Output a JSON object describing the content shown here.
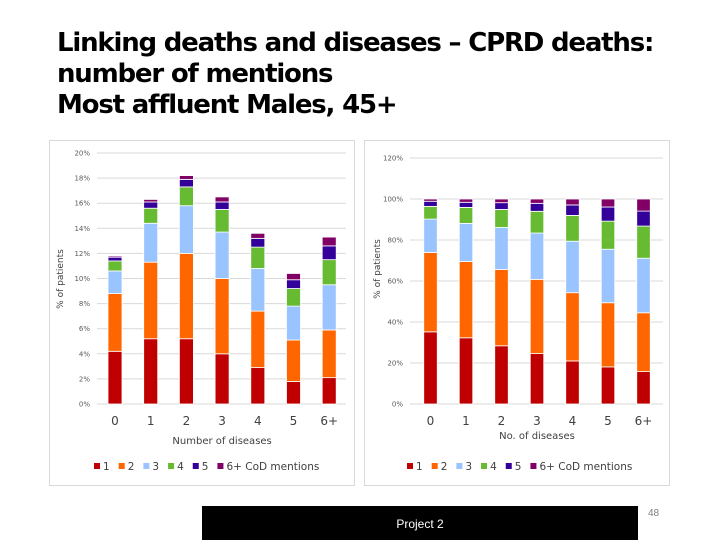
{
  "title_lines": [
    "Linking deaths and diseases – CPRD deaths:",
    "number of mentions",
    "Most affluent Males, 45+"
  ],
  "footer": {
    "label": "Project 2",
    "page_number": "48"
  },
  "series_colors": {
    "1": "#C00000",
    "2": "#FF6600",
    "3": "#99C4FF",
    "4": "#66BB33",
    "5": "#330099",
    "6+ CoD mentions": "#800066"
  },
  "chart_data": [
    {
      "type": "bar",
      "stacked": true,
      "title": "",
      "xlabel": "Number of diseases",
      "ylabel": "% of patients",
      "categories": [
        "0",
        "1",
        "2",
        "3",
        "4",
        "5",
        "6+"
      ],
      "ylim": [
        0,
        20
      ],
      "yticks": [
        "0%",
        "2%",
        "4%",
        "6%",
        "8%",
        "10%",
        "12%",
        "14%",
        "16%",
        "18%",
        "20%"
      ],
      "ytick_values": [
        0,
        2,
        4,
        6,
        8,
        10,
        12,
        14,
        16,
        18,
        20
      ],
      "grid": true,
      "legend": "bottom",
      "unit": "%",
      "series": [
        {
          "name": "1",
          "color": "#C00000",
          "values": [
            4.2,
            5.2,
            5.2,
            4.0,
            2.9,
            1.8,
            2.1
          ]
        },
        {
          "name": "2",
          "color": "#FF6600",
          "values": [
            4.6,
            6.1,
            6.8,
            6.0,
            4.5,
            3.3,
            3.8
          ]
        },
        {
          "name": "3",
          "color": "#99C4FF",
          "values": [
            1.8,
            3.1,
            3.8,
            3.7,
            3.4,
            2.7,
            3.6
          ]
        },
        {
          "name": "4",
          "color": "#66BB33",
          "values": [
            0.8,
            1.2,
            1.5,
            1.8,
            1.7,
            1.4,
            2.0
          ]
        },
        {
          "name": "5",
          "color": "#330099",
          "values": [
            0.3,
            0.5,
            0.6,
            0.6,
            0.7,
            0.7,
            1.1
          ]
        },
        {
          "name": "6+ CoD mentions",
          "color": "#800066",
          "values": [
            0.1,
            0.2,
            0.3,
            0.4,
            0.4,
            0.5,
            0.7
          ]
        }
      ]
    },
    {
      "type": "bar",
      "stacked": true,
      "title": "",
      "xlabel": "No. of diseases",
      "ylabel": "% of patients",
      "categories": [
        "0",
        "1",
        "2",
        "3",
        "4",
        "5",
        "6+"
      ],
      "ylim": [
        0,
        120
      ],
      "yticks": [
        "0%",
        "20%",
        "40%",
        "60%",
        "80%",
        "100%",
        "120%"
      ],
      "ytick_values": [
        0,
        20,
        40,
        60,
        80,
        100,
        120
      ],
      "grid": true,
      "legend": "bottom",
      "unit": "%",
      "series": [
        {
          "name": "1",
          "color": "#C00000",
          "values": [
            35.2,
            32.3,
            28.4,
            24.6,
            21.0,
            18.1,
            15.8
          ]
        },
        {
          "name": "2",
          "color": "#FF6600",
          "values": [
            38.7,
            37.2,
            37.2,
            36.2,
            33.3,
            31.3,
            28.7
          ]
        },
        {
          "name": "3",
          "color": "#99C4FF",
          "values": [
            16.3,
            18.6,
            20.5,
            22.6,
            25.1,
            26.1,
            26.6
          ]
        },
        {
          "name": "4",
          "color": "#66BB33",
          "values": [
            6.2,
            7.8,
            8.8,
            10.6,
            12.6,
            13.7,
            15.7
          ]
        },
        {
          "name": "5",
          "color": "#330099",
          "values": [
            2.5,
            2.5,
            3.3,
            3.9,
            5.1,
            6.9,
            7.3
          ]
        },
        {
          "name": "6+ CoD mentions",
          "color": "#800066",
          "values": [
            1.1,
            1.6,
            1.8,
            2.1,
            2.9,
            3.9,
            5.9
          ]
        }
      ]
    }
  ]
}
